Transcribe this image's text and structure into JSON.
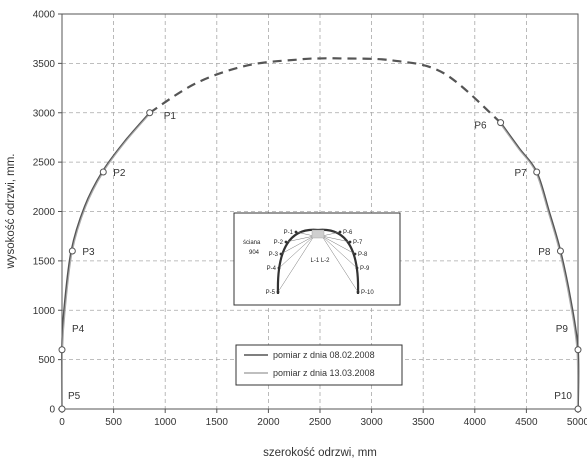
{
  "chart_data": {
    "type": "line",
    "xlabel": "szerokość odrzwi, mm",
    "ylabel": "wysokość odrzwi, mm.",
    "xlim": [
      0,
      5000
    ],
    "ylim": [
      0,
      4000
    ],
    "xticks": [
      0,
      500,
      1000,
      1500,
      2000,
      2500,
      3000,
      3500,
      4000,
      4500,
      5000
    ],
    "yticks": [
      0,
      500,
      1000,
      1500,
      2000,
      2500,
      3000,
      3500,
      4000
    ],
    "grid": true,
    "legend_position": "bottom-center",
    "series": [
      {
        "name": "pomiar z dnia 08.02.2008",
        "color": "#555555",
        "left_leg": [
          [
            0,
            0
          ],
          [
            0,
            600
          ],
          [
            20,
            1000
          ],
          [
            90,
            1600
          ],
          [
            220,
            2050
          ],
          [
            390,
            2400
          ],
          [
            600,
            2700
          ],
          [
            850,
            3000
          ]
        ],
        "right_leg": [
          [
            4250,
            2900
          ],
          [
            4430,
            2640
          ],
          [
            4600,
            2400
          ],
          [
            4720,
            2000
          ],
          [
            4830,
            1600
          ],
          [
            4930,
            1100
          ],
          [
            5000,
            600
          ],
          [
            5000,
            0
          ]
        ]
      },
      {
        "name": "pomiar z dnia 13.03.2008",
        "color": "#aaaaaa",
        "left_leg": [
          [
            0,
            0
          ],
          [
            5,
            600
          ],
          [
            30,
            1000
          ],
          [
            100,
            1600
          ],
          [
            230,
            2050
          ],
          [
            400,
            2400
          ],
          [
            610,
            2700
          ],
          [
            860,
            3000
          ]
        ],
        "right_leg": [
          [
            4240,
            2900
          ],
          [
            4420,
            2640
          ],
          [
            4590,
            2400
          ],
          [
            4710,
            2000
          ],
          [
            4820,
            1600
          ],
          [
            4920,
            1100
          ],
          [
            4990,
            600
          ],
          [
            4995,
            0
          ]
        ]
      }
    ],
    "crown_dashed": [
      [
        850,
        3000
      ],
      [
        1300,
        3300
      ],
      [
        1800,
        3480
      ],
      [
        2300,
        3540
      ],
      [
        2500,
        3550
      ],
      [
        2700,
        3550
      ],
      [
        3200,
        3530
      ],
      [
        3700,
        3400
      ],
      [
        4250,
        2900
      ]
    ],
    "points": [
      {
        "label": "P1",
        "x": 850,
        "y": 3000
      },
      {
        "label": "P2",
        "x": 400,
        "y": 2400
      },
      {
        "label": "P3",
        "x": 100,
        "y": 1600
      },
      {
        "label": "P4",
        "x": 0,
        "y": 600
      },
      {
        "label": "P5",
        "x": 0,
        "y": 0
      },
      {
        "label": "P6",
        "x": 4250,
        "y": 2900
      },
      {
        "label": "P7",
        "x": 4600,
        "y": 2400
      },
      {
        "label": "P8",
        "x": 4830,
        "y": 1600
      },
      {
        "label": "P9",
        "x": 5000,
        "y": 600
      },
      {
        "label": "P10",
        "x": 5000,
        "y": 0
      }
    ],
    "inset": {
      "wall_label_1": "ściana",
      "wall_label_2": "904",
      "center_label": "L-1 L-2",
      "labels": [
        "P-1",
        "P-2",
        "P-3",
        "P-4",
        "P-5",
        "P-6",
        "P-7",
        "P-8",
        "P-9",
        "P-10"
      ]
    }
  }
}
